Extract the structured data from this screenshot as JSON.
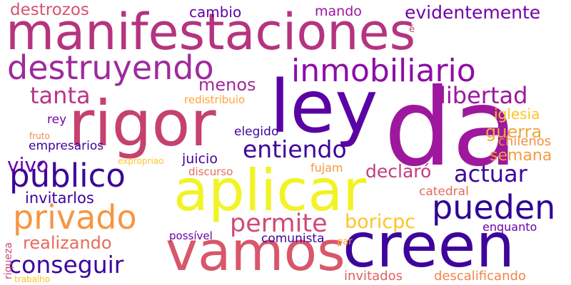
{
  "words": [
    {
      "text": "manifestaciones",
      "color": "#b5347f"
    },
    {
      "text": "da",
      "color": "#9d189d"
    },
    {
      "text": "rigor",
      "color": "#c5416f"
    },
    {
      "text": "ley",
      "color": "#5a02a3"
    },
    {
      "text": "aplicar",
      "color": "#f1f325"
    },
    {
      "text": "creen",
      "color": "#3e049c"
    },
    {
      "text": "vamos",
      "color": "#d8576b"
    },
    {
      "text": "destruyendo",
      "color": "#9f2a9c"
    },
    {
      "text": "inmobiliario",
      "color": "#8d0ea6"
    },
    {
      "text": "público",
      "color": "#3b049a"
    },
    {
      "text": "privado",
      "color": "#f89540"
    },
    {
      "text": "pueden",
      "color": "#2e0595"
    },
    {
      "text": "entiendo",
      "color": "#3e049c"
    },
    {
      "text": "actuar",
      "color": "#3e049c"
    },
    {
      "text": "tanta",
      "color": "#bb3488"
    },
    {
      "text": "libertad",
      "color": "#9c179e"
    },
    {
      "text": "evidentemente",
      "color": "#7201a8"
    },
    {
      "text": "destrozos",
      "color": "#d5546e"
    },
    {
      "text": "permite",
      "color": "#cf4a74"
    },
    {
      "text": "conseguir",
      "color": "#3e049c"
    },
    {
      "text": "realizando",
      "color": "#e66c5c"
    },
    {
      "text": "guerra",
      "color": "#f0a63d"
    },
    {
      "text": "declaró",
      "color": "#c33d80"
    },
    {
      "text": "boricpc",
      "color": "#fdc328"
    },
    {
      "text": "vivo",
      "color": "#6a00a8"
    },
    {
      "text": "menos",
      "color": "#a0299a"
    },
    {
      "text": "semana",
      "color": "#f89b40"
    },
    {
      "text": "iglesia",
      "color": "#fdc527"
    },
    {
      "text": "cambio",
      "color": "#5d02a6"
    },
    {
      "text": "mando",
      "color": "#9b179e"
    },
    {
      "text": "rey",
      "color": "#7d03a8"
    },
    {
      "text": "elegido",
      "color": "#3e049c"
    },
    {
      "text": "empresarios",
      "color": "#3e049c"
    },
    {
      "text": "juicio",
      "color": "#3e049c"
    },
    {
      "text": "invitarlos",
      "color": "#3e049c"
    },
    {
      "text": "chilenos",
      "color": "#f58c46"
    },
    {
      "text": "catedral",
      "color": "#e66c5c"
    },
    {
      "text": "enquanto",
      "color": "#6a00a8"
    },
    {
      "text": "comunista",
      "color": "#3e049c"
    },
    {
      "text": "invitados",
      "color": "#e2605f"
    },
    {
      "text": "descalificando",
      "color": "#f2844b"
    },
    {
      "text": "redistribuio",
      "color": "#fca636"
    },
    {
      "text": "fujam",
      "color": "#f89540"
    },
    {
      "text": "discurso",
      "color": "#e66c5c"
    },
    {
      "text": "possível",
      "color": "#6a00a8"
    },
    {
      "text": "par",
      "color": "#fca636"
    },
    {
      "text": "expropriao",
      "color": "#fdc328"
    },
    {
      "text": "fruto",
      "color": "#f48849"
    },
    {
      "text": "riqueza",
      "color": "#ca4678"
    },
    {
      "text": "trabalho",
      "color": "#fdc328"
    },
    {
      "text": "é",
      "color": "#cc4778"
    }
  ]
}
